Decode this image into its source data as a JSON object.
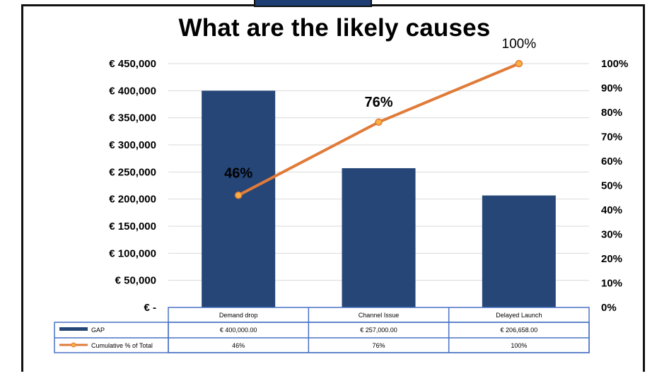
{
  "chart_data": {
    "type": "bar",
    "title": "What are the likely causes",
    "categories": [
      "Demand drop",
      "Channel Issue",
      "Delayed Launch"
    ],
    "series": [
      {
        "name": "GAP",
        "type": "bar",
        "axis": "left",
        "values": [
          400000,
          257000,
          206658
        ],
        "color": "#254677"
      },
      {
        "name": "Cumulative % of Total",
        "type": "line",
        "axis": "right",
        "values": [
          0.46,
          0.76,
          1.0
        ],
        "color": "#e07b39"
      }
    ],
    "left_axis": {
      "ylim": [
        0,
        450000
      ],
      "tick_values": [
        0,
        50000,
        100000,
        150000,
        200000,
        250000,
        300000,
        350000,
        400000,
        450000
      ],
      "tick_labels": [
        "€ -",
        "€ 50,000",
        "€ 100,000",
        "€ 150,000",
        "€ 200,000",
        "€ 250,000",
        "€ 300,000",
        "€ 350,000",
        "€ 400,000",
        "€ 450,000"
      ]
    },
    "right_axis": {
      "ylim": [
        0,
        1.0
      ],
      "tick_labels": [
        "0%",
        "10%",
        "20%",
        "30%",
        "40%",
        "50%",
        "60%",
        "70%",
        "80%",
        "90%",
        "100%"
      ]
    },
    "line_labels": [
      "46%",
      "76%",
      "100%"
    ],
    "grid": true,
    "legend": "data-table",
    "table": {
      "rows": [
        {
          "series": "GAP",
          "cells": [
            "€ 400,000.00",
            "€ 257,000.00",
            "€ 206,658.00"
          ]
        },
        {
          "series": "Cumulative % of Total",
          "cells": [
            "46%",
            "76%",
            "100%"
          ]
        }
      ]
    }
  }
}
